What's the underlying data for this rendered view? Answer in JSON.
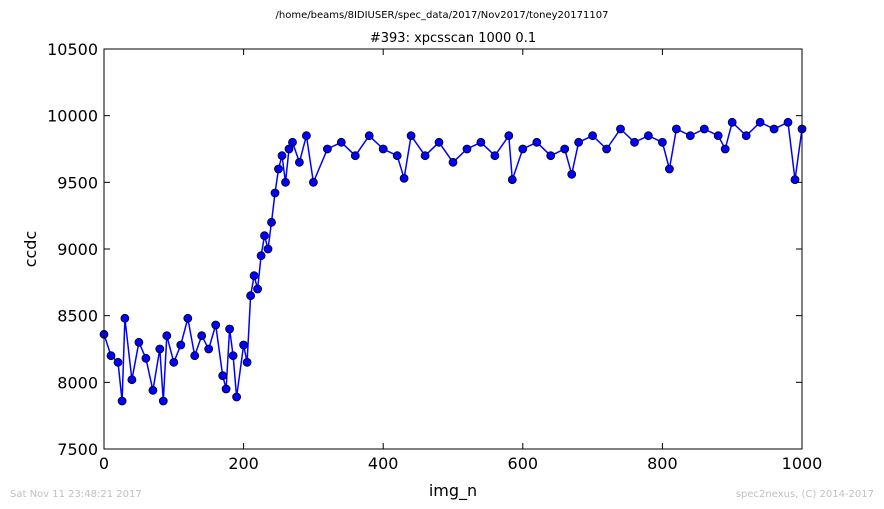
{
  "chart_data": {
    "type": "scatter",
    "suptitle": "/home/beams/8IDIUSER/spec_data/2017/Nov2017/toney20171107",
    "title": "#393: xpcsscan 1000 0.1",
    "xlabel": "img_n",
    "ylabel": "ccdc",
    "xlim": [
      0,
      1000
    ],
    "ylim": [
      7500,
      10500
    ],
    "x_ticks": [
      "0",
      "200",
      "400",
      "600",
      "800",
      "1000"
    ],
    "y_ticks": [
      "7500",
      "8000",
      "8500",
      "9000",
      "9500",
      "10000",
      "10500"
    ],
    "x_tick_values": [
      0,
      200,
      400,
      600,
      800,
      1000
    ],
    "y_tick_values": [
      7500,
      8000,
      8500,
      9000,
      9500,
      10000,
      10500
    ],
    "grid": false,
    "series": [
      {
        "color": "#0000ff",
        "line": true,
        "marker": "circle",
        "x": [
          0,
          10,
          20,
          26,
          30,
          40,
          50,
          60,
          70,
          80,
          85,
          90,
          100,
          110,
          120,
          130,
          140,
          150,
          160,
          170,
          175,
          180,
          185,
          190,
          200,
          205,
          210,
          215,
          220,
          225,
          230,
          235,
          240,
          245,
          250,
          255,
          260,
          265,
          270,
          280,
          290,
          300,
          320,
          340,
          360,
          380,
          400,
          420,
          430,
          440,
          460,
          480,
          500,
          520,
          540,
          560,
          580,
          585,
          600,
          620,
          640,
          660,
          670,
          680,
          700,
          720,
          740,
          760,
          780,
          800,
          810,
          820,
          840,
          860,
          880,
          890,
          900,
          920,
          940,
          960,
          980,
          990,
          1000
        ],
        "y": [
          8360,
          8200,
          8150,
          7860,
          8480,
          8020,
          8300,
          8180,
          7940,
          8250,
          7860,
          8350,
          8150,
          8280,
          8480,
          8200,
          8350,
          8250,
          8430,
          8050,
          7950,
          8400,
          8200,
          7890,
          8280,
          8150,
          8650,
          8800,
          8700,
          8950,
          9100,
          9000,
          9200,
          9420,
          9600,
          9700,
          9500,
          9750,
          9800,
          9650,
          9850,
          9500,
          9750,
          9800,
          9700,
          9850,
          9750,
          9700,
          9530,
          9850,
          9700,
          9800,
          9650,
          9750,
          9800,
          9700,
          9850,
          9520,
          9750,
          9800,
          9700,
          9750,
          9560,
          9800,
          9850,
          9750,
          9900,
          9800,
          9850,
          9800,
          9600,
          9900,
          9850,
          9900,
          9850,
          9750,
          9950,
          9850,
          9950,
          9900,
          9950,
          9520,
          9900
        ]
      }
    ],
    "footer_left": "Sat Nov 11 23:48:21 2017",
    "footer_right": "spec2nexus, (C) 2014-2017"
  }
}
